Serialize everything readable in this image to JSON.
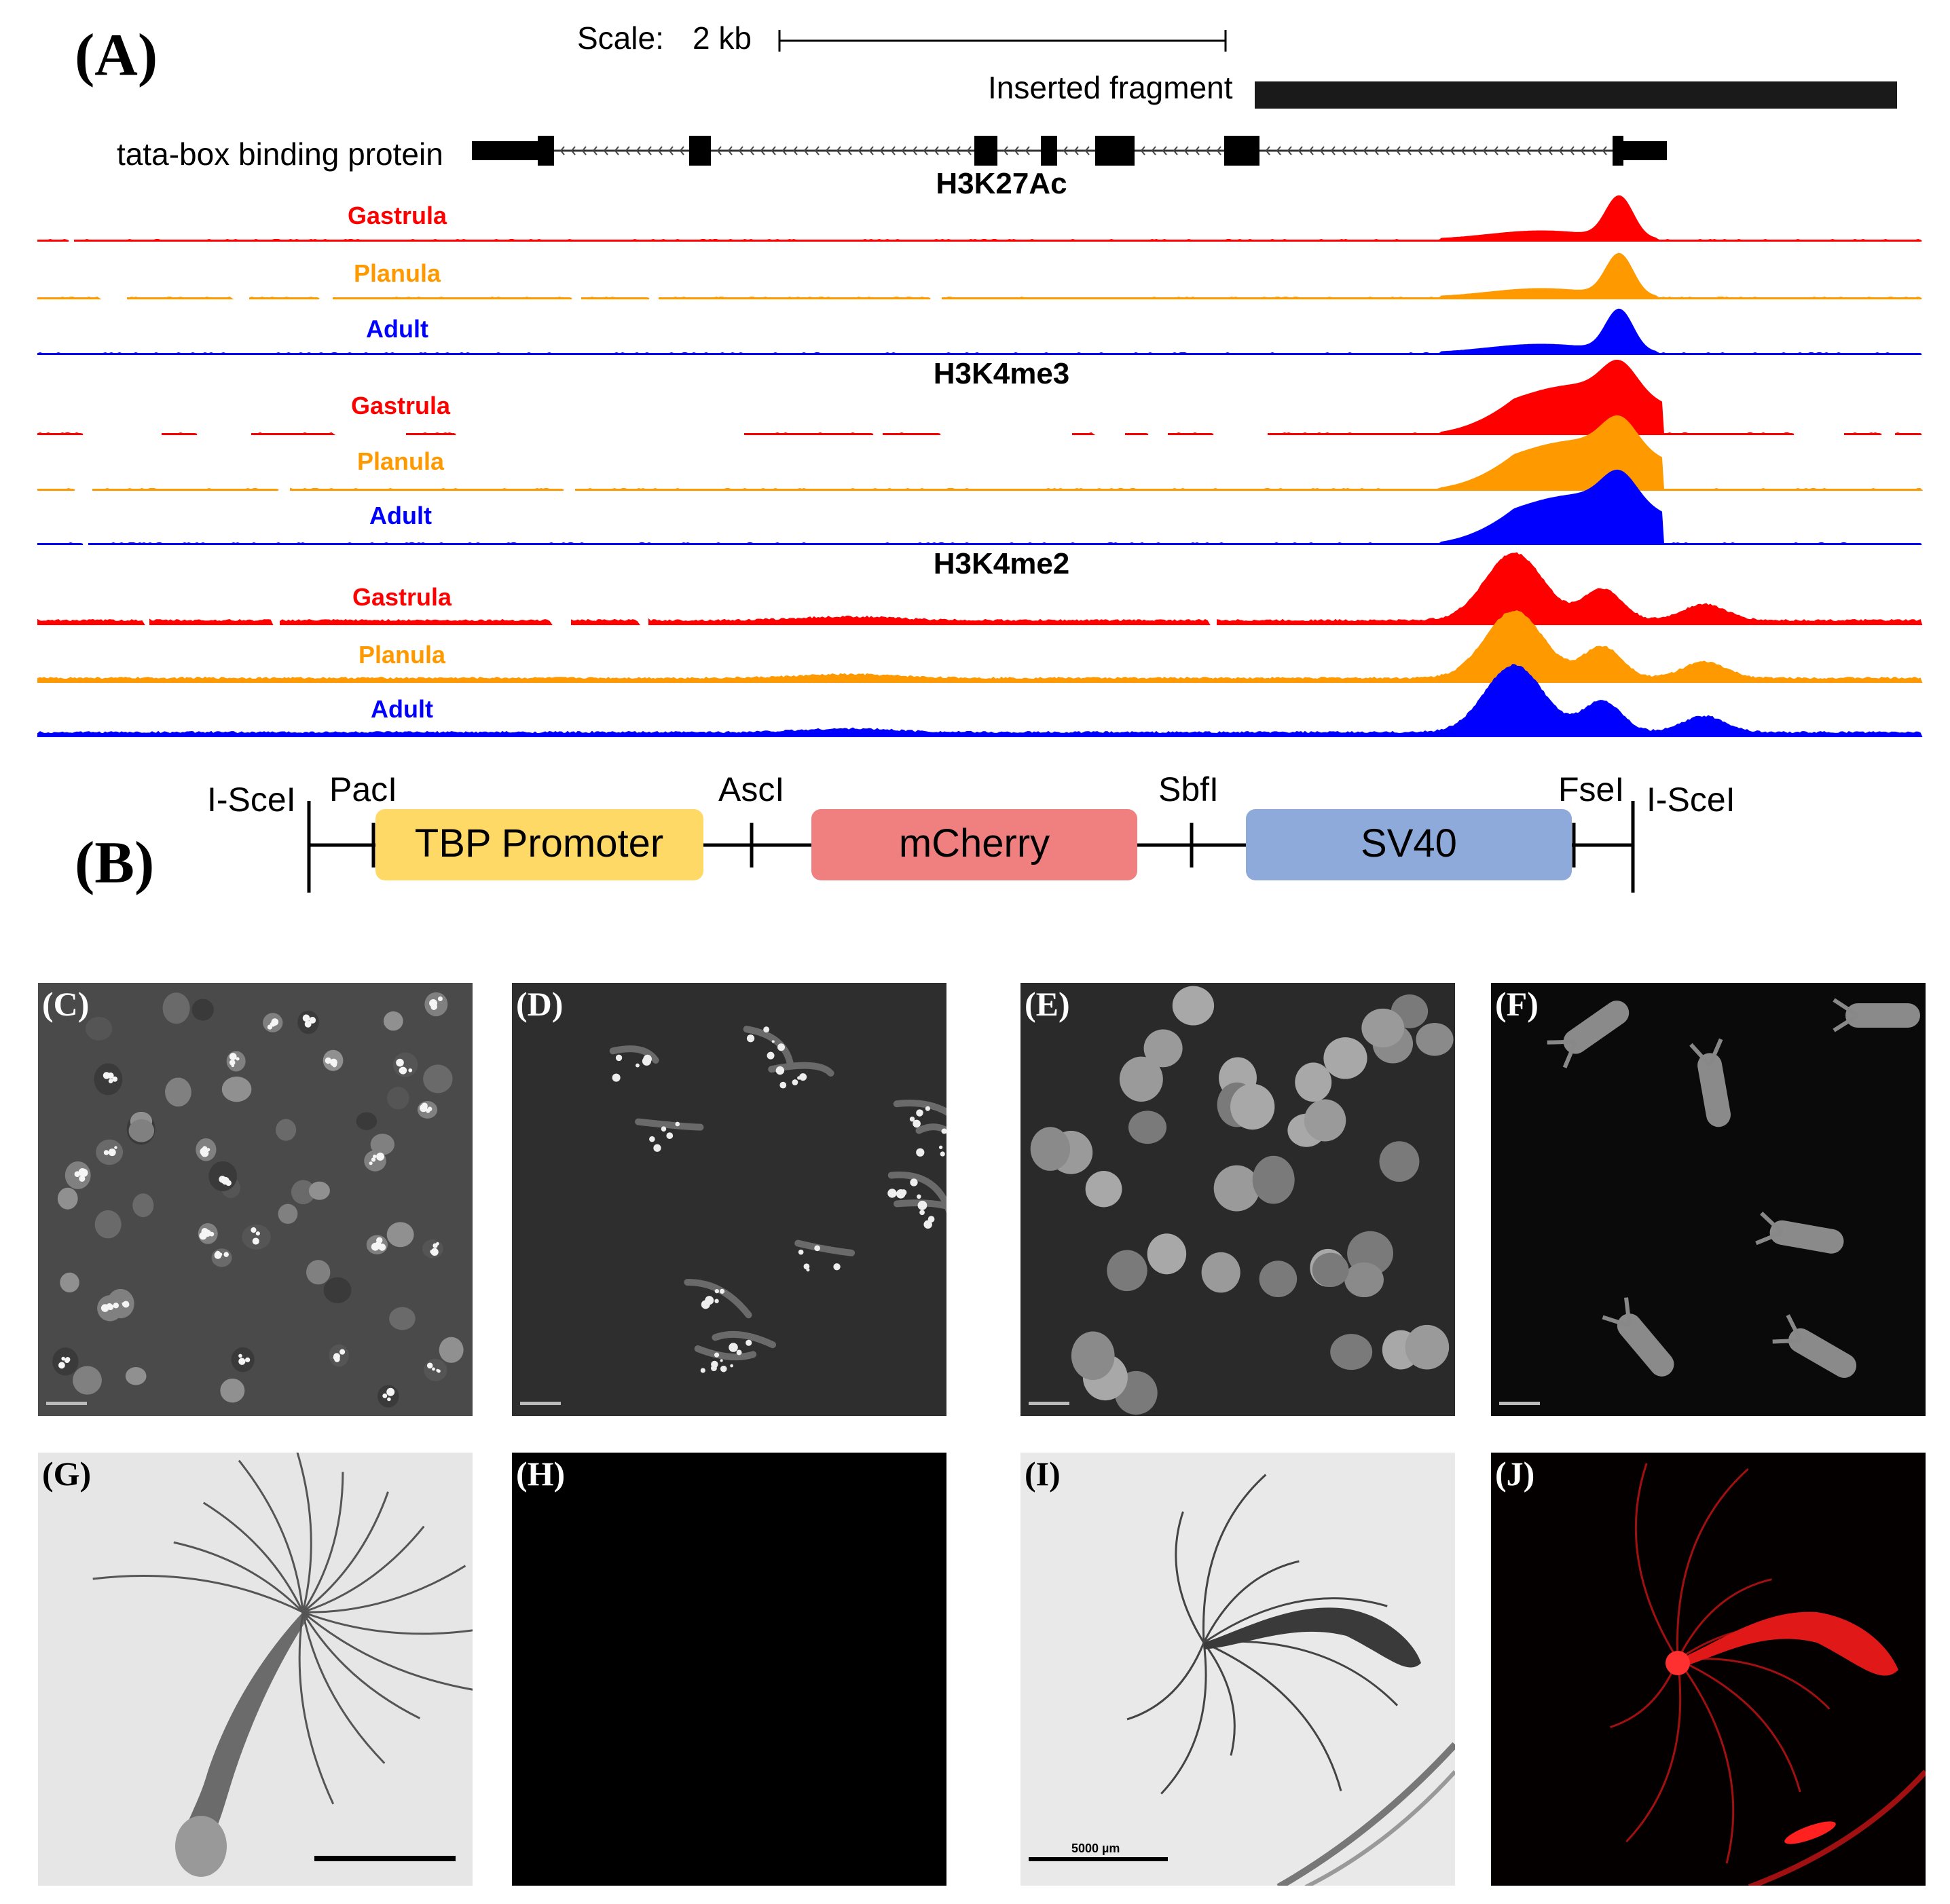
{
  "panel_a": {
    "label": "(A)",
    "scale_label": "Scale:",
    "scale_value": "2 kb",
    "inserted_label": "Inserted fragment",
    "gene_label": "tata-box binding protein",
    "tracks": [
      {
        "mark": "H3K27Ac",
        "rows": [
          {
            "stage": "Gastrula",
            "color": "#ff0000",
            "shape": "k27"
          },
          {
            "stage": "Planula",
            "color": "#ff9900",
            "shape": "k27"
          },
          {
            "stage": "Adult",
            "color": "#0000ff",
            "shape": "k27"
          }
        ]
      },
      {
        "mark": "H3K4me3",
        "rows": [
          {
            "stage": "Gastrula",
            "color": "#ff0000",
            "shape": "k4me3"
          },
          {
            "stage": "Planula",
            "color": "#ff9900",
            "shape": "k4me3"
          },
          {
            "stage": "Adult",
            "color": "#0000ff",
            "shape": "k4me3"
          }
        ]
      },
      {
        "mark": "H3K4me2",
        "rows": [
          {
            "stage": "Gastrula",
            "color": "#ff0000",
            "shape": "k4me2"
          },
          {
            "stage": "Planula",
            "color": "#ff9900",
            "shape": "k4me2"
          },
          {
            "stage": "Adult",
            "color": "#0000ff",
            "shape": "k4me2"
          }
        ]
      }
    ]
  },
  "panel_b": {
    "label": "(B)",
    "sites": {
      "iscei_left": "I-SceI",
      "paci": "PacI",
      "asci": "AscI",
      "sbfi": "SbfI",
      "fsei": "FseI",
      "iscei_right": "I-SceI"
    },
    "boxes": [
      {
        "text": "TBP Promoter",
        "color": "#ffd966"
      },
      {
        "text": "mCherry",
        "color": "#f08080"
      },
      {
        "text": "SV40",
        "color": "#8eaadb"
      }
    ]
  },
  "micrographs": [
    {
      "label": "(C)",
      "style": "embryos-bright"
    },
    {
      "label": "(D)",
      "style": "planula-sparse"
    },
    {
      "label": "(E)",
      "style": "embryos-uniform"
    },
    {
      "label": "(F)",
      "style": "polyps"
    },
    {
      "label": "(G)",
      "style": "hydra-brightfield"
    },
    {
      "label": "(H)",
      "style": "black"
    },
    {
      "label": "(I)",
      "style": "hydra-brightfield-2"
    },
    {
      "label": "(J)",
      "style": "hydra-red"
    }
  ],
  "micro_scale_text": "5000 µm"
}
